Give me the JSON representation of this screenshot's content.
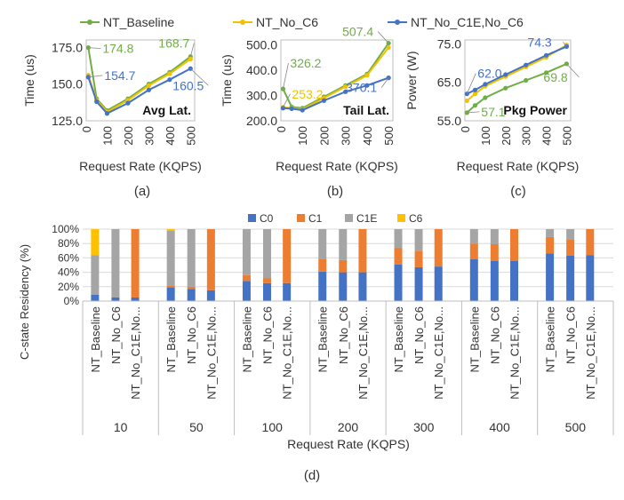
{
  "colors": {
    "baseline": "#70AD47",
    "no_c6": "#F2C200",
    "no_c1e_c6": "#4472C4",
    "c0": "#4472C4",
    "c1": "#ED7D31",
    "c1e": "#A5A5A5",
    "c6": "#FFC000"
  },
  "top_legend": [
    "NT_Baseline",
    "NT_No_C6",
    "NT_No_C1E,No_C6"
  ],
  "chart_data": [
    {
      "type": "line",
      "caption": "(a)",
      "inner_label": "Avg Lat.",
      "xlabel": "Request Rate (KQPS)",
      "ylabel": "Time (us)",
      "x": [
        10,
        50,
        100,
        200,
        300,
        400,
        500
      ],
      "xticks": [
        "0",
        "100",
        "200",
        "300",
        "400",
        "500"
      ],
      "yticks": [
        "125.0",
        "150.0",
        "175.0"
      ],
      "ylim": [
        125,
        180
      ],
      "series": [
        {
          "name": "NT_Baseline",
          "values": [
            174.8,
            140,
            132,
            140,
            150,
            158,
            168.7
          ]
        },
        {
          "name": "NT_No_C6",
          "values": [
            156,
            139,
            131,
            139,
            149,
            157,
            167
          ]
        },
        {
          "name": "NT_No_C1E,No_C6",
          "values": [
            154.7,
            138,
            130,
            137,
            146,
            153,
            160.5
          ]
        }
      ],
      "annotations": [
        {
          "text": "174.8",
          "series": 0,
          "point": 0,
          "dx": 16,
          "dy": 6
        },
        {
          "text": "168.7",
          "series": 0,
          "point": 6,
          "dx": -36,
          "dy": -10
        },
        {
          "text": "154.7",
          "series": 2,
          "point": 0,
          "dx": 18,
          "dy": 3
        },
        {
          "text": "160.5",
          "series": 2,
          "point": 6,
          "dx": -20,
          "dy": 24
        }
      ]
    },
    {
      "type": "line",
      "caption": "(b)",
      "inner_label": "Tail Lat.",
      "xlabel": "Request Rate (KQPS)",
      "ylabel": "Time (us)",
      "x": [
        10,
        50,
        100,
        200,
        300,
        400,
        500
      ],
      "xticks": [
        "0",
        "100",
        "200",
        "300",
        "400",
        "500"
      ],
      "yticks": [
        "200.0",
        "300.0",
        "400.0",
        "500.0"
      ],
      "ylim": [
        200,
        520
      ],
      "series": [
        {
          "name": "NT_Baseline",
          "values": [
            326.2,
            255,
            250,
            295,
            340,
            385,
            507.4
          ]
        },
        {
          "name": "NT_No_C6",
          "values": [
            253.2,
            250,
            245,
            290,
            335,
            380,
            490
          ]
        },
        {
          "name": "NT_No_C1E,No_C6",
          "values": [
            250,
            248,
            242,
            280,
            315,
            340,
            370.1
          ]
        }
      ],
      "annotations": [
        {
          "text": "326.2",
          "series": 0,
          "point": 0,
          "dx": 8,
          "dy": -24
        },
        {
          "text": "253.2",
          "series": 1,
          "point": 0,
          "dx": 10,
          "dy": -10
        },
        {
          "text": "507.4",
          "series": 0,
          "point": 6,
          "dx": -52,
          "dy": -8
        },
        {
          "text": "370.1",
          "series": 2,
          "point": 6,
          "dx": -48,
          "dy": 16
        }
      ]
    },
    {
      "type": "line",
      "caption": "(c)",
      "inner_label": "Pkg Power",
      "xlabel": "Request Rate (KQPS)",
      "ylabel": "Power (W)",
      "x": [
        10,
        50,
        100,
        200,
        300,
        400,
        500
      ],
      "xticks": [
        "0",
        "100",
        "200",
        "300",
        "400",
        "500"
      ],
      "yticks": [
        "55.0",
        "65.0",
        "75.0"
      ],
      "ylim": [
        55,
        76
      ],
      "series": [
        {
          "name": "NT_Baseline",
          "values": [
            57.1,
            59,
            61,
            63.5,
            65.5,
            67.5,
            69.8
          ]
        },
        {
          "name": "NT_No_C6",
          "values": [
            60.2,
            62,
            64,
            66.5,
            69,
            71.5,
            74.7
          ]
        },
        {
          "name": "NT_No_C1E,No_C6",
          "values": [
            62.0,
            63,
            64.5,
            67,
            69.5,
            72,
            74.3
          ]
        }
      ],
      "annotations": [
        {
          "text": "62.0",
          "series": 2,
          "point": 0,
          "dx": 12,
          "dy": -18
        },
        {
          "text": "57.1",
          "series": 0,
          "point": 0,
          "dx": 16,
          "dy": 4
        },
        {
          "text": "74.3",
          "series": 2,
          "point": 6,
          "dx": -44,
          "dy": 0
        },
        {
          "text": "69.8",
          "series": 0,
          "point": 6,
          "dx": -26,
          "dy": 20
        }
      ]
    },
    {
      "type": "bar",
      "stacked": true,
      "caption": "(d)",
      "xlabel": "Request Rate (KQPS)",
      "ylabel": "C-state Residency (%)",
      "yticks": [
        "0%",
        "20%",
        "40%",
        "60%",
        "80%",
        "100%"
      ],
      "ylim": [
        0,
        100
      ],
      "legend": [
        "C0",
        "C1",
        "C1E",
        "C6"
      ],
      "group_labels": [
        "10",
        "50",
        "100",
        "200",
        "300",
        "400",
        "500"
      ],
      "bar_labels": [
        "NT_Baseline",
        "NT_No_C6",
        "NT_No_C1E,No..."
      ],
      "groups": [
        [
          [
            9,
            0,
            55,
            36
          ],
          [
            5,
            0,
            95,
            0
          ],
          [
            5,
            95,
            0,
            0
          ]
        ],
        [
          [
            19,
            3,
            76,
            2
          ],
          [
            17,
            3,
            80,
            0
          ],
          [
            15,
            85,
            0,
            0
          ]
        ],
        [
          [
            28,
            8,
            64,
            0
          ],
          [
            25,
            7,
            68,
            0
          ],
          [
            25,
            75,
            0,
            0
          ]
        ],
        [
          [
            41,
            18,
            41,
            0
          ],
          [
            40,
            17,
            43,
            0
          ],
          [
            40,
            60,
            0,
            0
          ]
        ],
        [
          [
            51,
            23,
            26,
            0
          ],
          [
            47,
            23,
            30,
            0
          ],
          [
            48,
            52,
            0,
            0
          ]
        ],
        [
          [
            58,
            22,
            20,
            0
          ],
          [
            56,
            23,
            21,
            0
          ],
          [
            56,
            44,
            0,
            0
          ]
        ],
        [
          [
            66,
            23,
            11,
            0
          ],
          [
            63,
            23,
            14,
            0
          ],
          [
            64,
            36,
            0,
            0
          ]
        ]
      ]
    }
  ]
}
